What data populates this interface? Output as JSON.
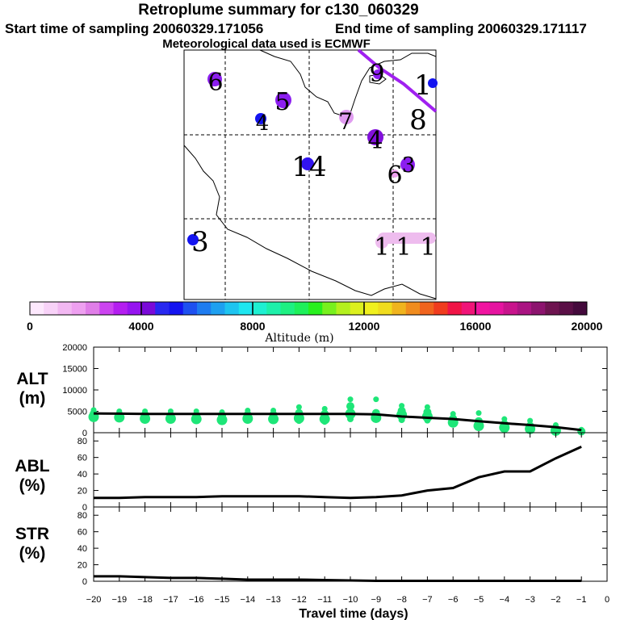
{
  "header": {
    "title": "Retroplume summary for c130_060329",
    "start": "Start time of sampling 20060329.171056",
    "end": "End time of sampling 20060329.171117",
    "met": "Meteorological data used is ECMWF"
  },
  "map": {
    "markers": [
      {
        "label": "6",
        "color": "#8c1ef0"
      },
      {
        "label": "5",
        "color": "#8c1ef0"
      },
      {
        "label": "4",
        "color": "#1414f0"
      },
      {
        "label": "7",
        "color": "#e09cf0"
      },
      {
        "label": "4",
        "color": "#8210dc"
      },
      {
        "label": "9",
        "color": "#8c1ef0"
      },
      {
        "label": "1",
        "color": "#1414f0"
      },
      {
        "label": "8",
        "color": "#ffffff"
      },
      {
        "label": "14",
        "color": "#3214f0"
      },
      {
        "label": "6",
        "color": "#f0a0f0"
      },
      {
        "label": "3",
        "color": "#8c1ef0"
      },
      {
        "label": "3",
        "color": "#1414f0"
      },
      {
        "label": "1",
        "color": "#eebcee"
      },
      {
        "label": "1",
        "color": "#eebcee"
      },
      {
        "label": "1",
        "color": "#eebcee"
      }
    ]
  },
  "colorbar": {
    "axis_label": "Altitude (m)",
    "ticks": [
      "0",
      "4000",
      "8000",
      "12000",
      "16000",
      "20000"
    ],
    "colors": [
      "#fde8fd",
      "#f8d2f8",
      "#f2b8f2",
      "#eea0f0",
      "#e07ee8",
      "#cc44f0",
      "#b41ef0",
      "#9614f0",
      "#7a0ad8",
      "#2828f0",
      "#1414f0",
      "#1e50f0",
      "#1e7cf0",
      "#1ea0f0",
      "#1ec4f0",
      "#1ee6f0",
      "#1ef0d2",
      "#1ef0aa",
      "#1ef082",
      "#1ef05a",
      "#28f01e",
      "#78f01e",
      "#b4f01e",
      "#dcf01e",
      "#f0f01e",
      "#f0dc1e",
      "#f0b41e",
      "#f08c1e",
      "#f0641e",
      "#f03c1e",
      "#f01446",
      "#f01478",
      "#f014a0",
      "#e614a0",
      "#c8148c",
      "#aa1482",
      "#8c146e",
      "#6e1450",
      "#5a0f46",
      "#440a3c"
    ]
  },
  "chart_data": [
    {
      "type": "scatter",
      "title": "ALT (m)",
      "xlabel": "Travel time (days)",
      "ylabel": "ALT (m)",
      "xlim": [
        -20,
        0
      ],
      "ylim": [
        0,
        20000
      ],
      "y_ticks": [
        "20000",
        "15000",
        "10000",
        "5000",
        "0"
      ],
      "mean_line": {
        "x": [
          -20,
          -19,
          -18,
          -17,
          -16,
          -15,
          -14,
          -13,
          -12,
          -11,
          -10,
          -9,
          -8,
          -7,
          -6,
          -5,
          -4,
          -3,
          -2,
          -1
        ],
        "y": [
          4500,
          4450,
          4400,
          4400,
          4400,
          4400,
          4400,
          4400,
          4400,
          4400,
          4400,
          4300,
          3800,
          3500,
          3200,
          2700,
          2200,
          1800,
          1300,
          600
        ]
      },
      "points": [
        {
          "x": -20,
          "y": [
            5300,
            4400,
            3700
          ]
        },
        {
          "x": -19,
          "y": [
            5000,
            4200,
            3600
          ]
        },
        {
          "x": -18,
          "y": [
            5000,
            4200,
            3300
          ]
        },
        {
          "x": -17,
          "y": [
            5000,
            4000,
            3300
          ]
        },
        {
          "x": -16,
          "y": [
            5000,
            4000,
            3200
          ]
        },
        {
          "x": -15,
          "y": [
            4800,
            4000,
            3000
          ]
        },
        {
          "x": -14,
          "y": [
            5200,
            4200,
            3300
          ]
        },
        {
          "x": -13,
          "y": [
            5200,
            4200,
            3200
          ]
        },
        {
          "x": -12,
          "y": [
            6000,
            4600,
            3400,
            2800
          ]
        },
        {
          "x": -11,
          "y": [
            5600,
            4400,
            3200,
            2600
          ]
        },
        {
          "x": -10,
          "y": [
            7800,
            6200,
            4400,
            3200
          ]
        },
        {
          "x": -9,
          "y": [
            7800,
            4600,
            3500
          ]
        },
        {
          "x": -8,
          "y": [
            6300,
            5100,
            4200,
            3000
          ]
        },
        {
          "x": -7,
          "y": [
            6000,
            4800,
            3800,
            2900
          ]
        },
        {
          "x": -6,
          "y": [
            4400,
            3300,
            2400
          ]
        },
        {
          "x": -5,
          "y": [
            4600,
            2700,
            1600
          ]
        },
        {
          "x": -4,
          "y": [
            3200,
            2000,
            1200
          ]
        },
        {
          "x": -3,
          "y": [
            2800,
            1600,
            900
          ]
        },
        {
          "x": -2,
          "y": [
            1800,
            1000,
            500
          ]
        },
        {
          "x": -1,
          "y": [
            700,
            300
          ]
        }
      ]
    },
    {
      "type": "line",
      "title": "ABL (%)",
      "xlabel": "Travel time (days)",
      "ylabel": "ABL (%)",
      "xlim": [
        -20,
        0
      ],
      "ylim": [
        0,
        90
      ],
      "y_ticks": [
        "80",
        "60",
        "40",
        "20",
        "0"
      ],
      "x": [
        -20,
        -19,
        -18,
        -17,
        -16,
        -15,
        -14,
        -13,
        -12,
        -11,
        -10,
        -9,
        -8,
        -7,
        -6,
        -5,
        -4,
        -3,
        -2,
        -1
      ],
      "values": [
        11,
        11,
        12,
        12,
        12,
        13,
        13,
        13,
        13,
        12,
        11,
        12,
        14,
        20,
        23,
        36,
        43,
        43,
        59,
        73
      ]
    },
    {
      "type": "line",
      "title": "STR (%)",
      "xlabel": "Travel time (days)",
      "ylabel": "STR (%)",
      "xlim": [
        -20,
        0
      ],
      "ylim": [
        0,
        90
      ],
      "y_ticks": [
        "80",
        "60",
        "40",
        "20",
        "0"
      ],
      "x": [
        -20,
        -19,
        -18,
        -17,
        -16,
        -15,
        -14,
        -13,
        -12,
        -11,
        -10,
        -9,
        -8,
        -7,
        -6,
        -5,
        -4,
        -3,
        -2,
        -1
      ],
      "values": [
        6,
        6,
        5,
        4,
        4,
        3,
        2,
        2,
        2,
        1.5,
        1,
        0.5,
        0.5,
        0.5,
        0.5,
        0.5,
        0.5,
        0.5,
        0.5,
        0.5
      ]
    }
  ],
  "panels": {
    "alt": {
      "label1": "ALT",
      "label2": "(m)"
    },
    "abl": {
      "label1": "ABL",
      "label2": "(%)"
    },
    "str": {
      "label1": "STR",
      "label2": "(%)"
    }
  },
  "x_axis": {
    "label": "Travel time (days)",
    "ticks": [
      "−20",
      "−19",
      "−18",
      "−17",
      "−16",
      "−15",
      "−14",
      "−13",
      "−12",
      "−11",
      "−10",
      "−9",
      "−8",
      "−7",
      "−6",
      "−5",
      "−4",
      "−3",
      "−2",
      "−1",
      "0"
    ]
  }
}
